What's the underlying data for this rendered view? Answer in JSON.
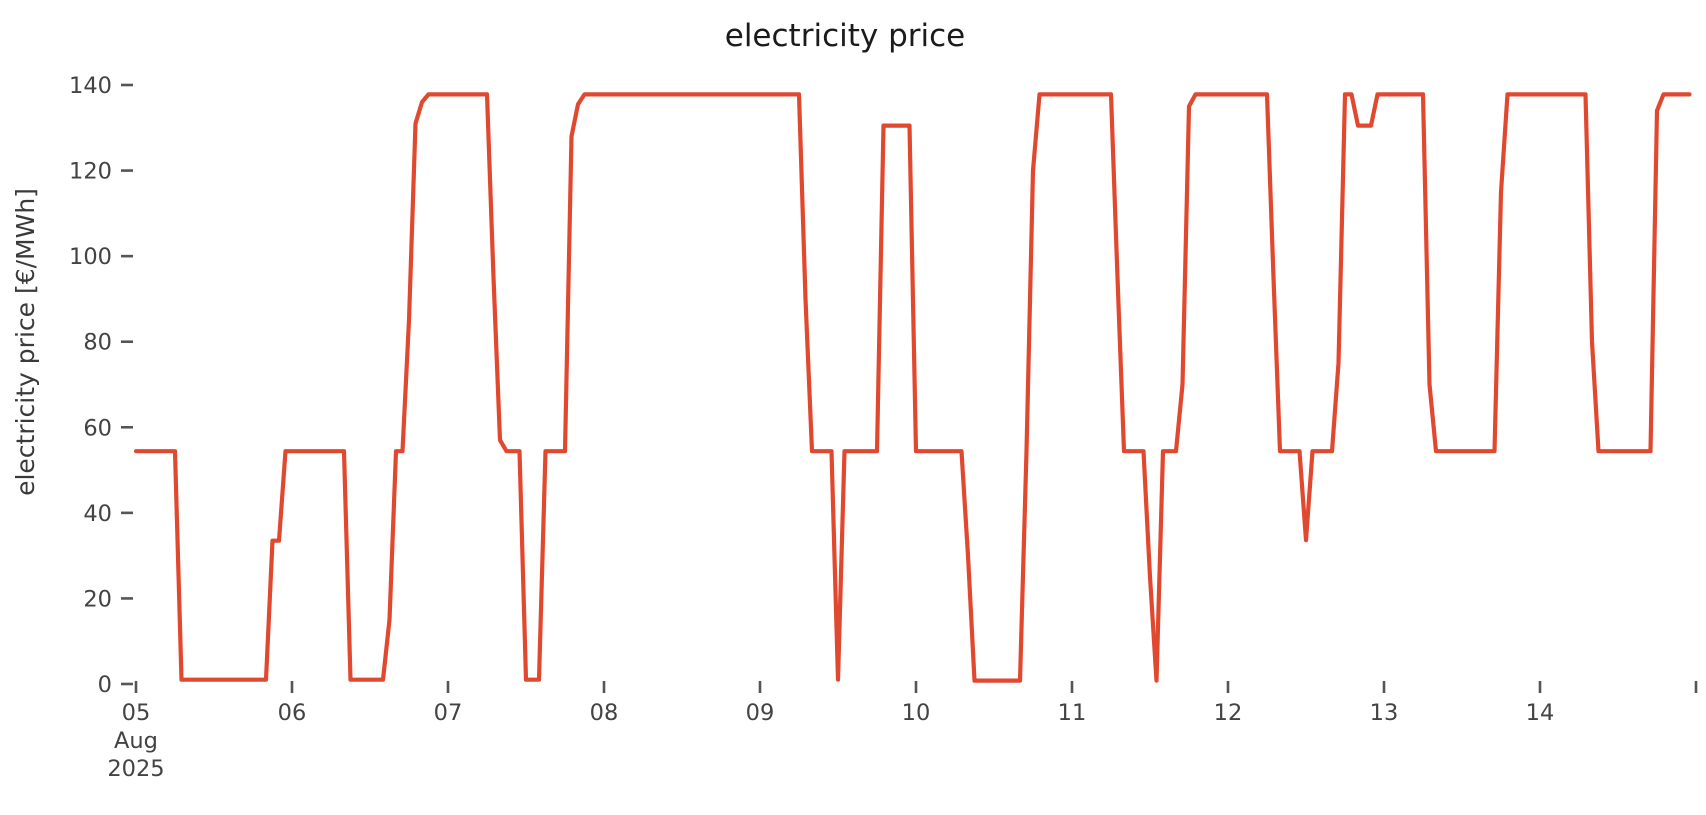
{
  "chart_data": {
    "type": "line",
    "title": "electricity price",
    "ylabel": "electricity price [€/MWh]",
    "xlabel": "",
    "unit": "€/MWh",
    "interval": "hourly",
    "grid": false,
    "legend": "none",
    "line_color": "#e0492f",
    "tick_color": "#555555",
    "tick_label_color": "#434343",
    "title_color": "#1b1b1b",
    "axis_label_color": "#3a3a3a",
    "ylim": [
      0,
      145
    ],
    "y_ticks": [
      0,
      20,
      40,
      60,
      80,
      100,
      120,
      140
    ],
    "x_tick_labels": [
      "05",
      "06",
      "07",
      "08",
      "09",
      "10",
      "11",
      "12",
      "13",
      "14"
    ],
    "x_first_tick_sub_labels": [
      "Aug",
      "2025"
    ],
    "x_extra_tick_unlabeled": true,
    "series": [
      {
        "name": "electricity price",
        "days": [
          {
            "date": "05 Aug 2025",
            "values": [
              54.4,
              54.4,
              54.4,
              54.4,
              54.4,
              54.4,
              54.4,
              1,
              1,
              1,
              1,
              1,
              1,
              1,
              1,
              1,
              1,
              1,
              1,
              1,
              1,
              33.5,
              33.5,
              54.4
            ]
          },
          {
            "date": "06 Aug 2025",
            "values": [
              54.4,
              54.4,
              54.4,
              54.4,
              54.4,
              54.4,
              54.4,
              54.4,
              54.4,
              1,
              1,
              1,
              1,
              1,
              1,
              15,
              54.4,
              54.4,
              85,
              131,
              136,
              137.8,
              137.8,
              137.8
            ]
          },
          {
            "date": "07 Aug 2025",
            "values": [
              137.8,
              137.8,
              137.8,
              137.8,
              137.8,
              137.8,
              137.8,
              95,
              57,
              54.4,
              54.4,
              54.4,
              1,
              1,
              1,
              54.4,
              54.4,
              54.4,
              54.4,
              128,
              135.5,
              137.8,
              137.8,
              137.8
            ]
          },
          {
            "date": "08 Aug 2025",
            "values": [
              137.8,
              137.8,
              137.8,
              137.8,
              137.8,
              137.8,
              137.8,
              137.8,
              137.8,
              137.8,
              137.8,
              137.8,
              137.8,
              137.8,
              137.8,
              137.8,
              137.8,
              137.8,
              137.8,
              137.8,
              137.8,
              137.8,
              137.8,
              137.8
            ]
          },
          {
            "date": "09 Aug 2025",
            "values": [
              137.8,
              137.8,
              137.8,
              137.8,
              137.8,
              137.8,
              137.8,
              90,
              54.4,
              54.4,
              54.4,
              54.4,
              1,
              54.4,
              54.4,
              54.4,
              54.4,
              54.4,
              54.4,
              130.5,
              130.5,
              130.5,
              130.5,
              130.5
            ]
          },
          {
            "date": "10 Aug 2025",
            "values": [
              54.4,
              54.4,
              54.4,
              54.4,
              54.4,
              54.4,
              54.4,
              54.4,
              30,
              0.8,
              0.8,
              0.8,
              0.8,
              0.8,
              0.8,
              0.8,
              0.8,
              54.4,
              120,
              137.8,
              137.8,
              137.8,
              137.8,
              137.8
            ]
          },
          {
            "date": "11 Aug 2025",
            "values": [
              137.8,
              137.8,
              137.8,
              137.8,
              137.8,
              137.8,
              137.8,
              95,
              54.4,
              54.4,
              54.4,
              54.4,
              25,
              0.8,
              54.4,
              54.4,
              54.4,
              70,
              135,
              137.8,
              137.8,
              137.8,
              137.8,
              137.8
            ]
          },
          {
            "date": "12 Aug 2025",
            "values": [
              137.8,
              137.8,
              137.8,
              137.8,
              137.8,
              137.8,
              137.8,
              95,
              54.4,
              54.4,
              54.4,
              54.4,
              33.6,
              54.4,
              54.4,
              54.4,
              54.4,
              75,
              137.8,
              137.8,
              130.5,
              130.5,
              130.5,
              137.8
            ]
          },
          {
            "date": "13 Aug 2025",
            "values": [
              137.8,
              137.8,
              137.8,
              137.8,
              137.8,
              137.8,
              137.8,
              70,
              54.4,
              54.4,
              54.4,
              54.4,
              54.4,
              54.4,
              54.4,
              54.4,
              54.4,
              54.4,
              115,
              137.8,
              137.8,
              137.8,
              137.8,
              137.8
            ]
          },
          {
            "date": "14 Aug 2025",
            "values": [
              137.8,
              137.8,
              137.8,
              137.8,
              137.8,
              137.8,
              137.8,
              137.8,
              80,
              54.4,
              54.4,
              54.4,
              54.4,
              54.4,
              54.4,
              54.4,
              54.4,
              54.4,
              134,
              137.8,
              137.8,
              137.8,
              137.8,
              137.8
            ]
          }
        ]
      }
    ]
  }
}
